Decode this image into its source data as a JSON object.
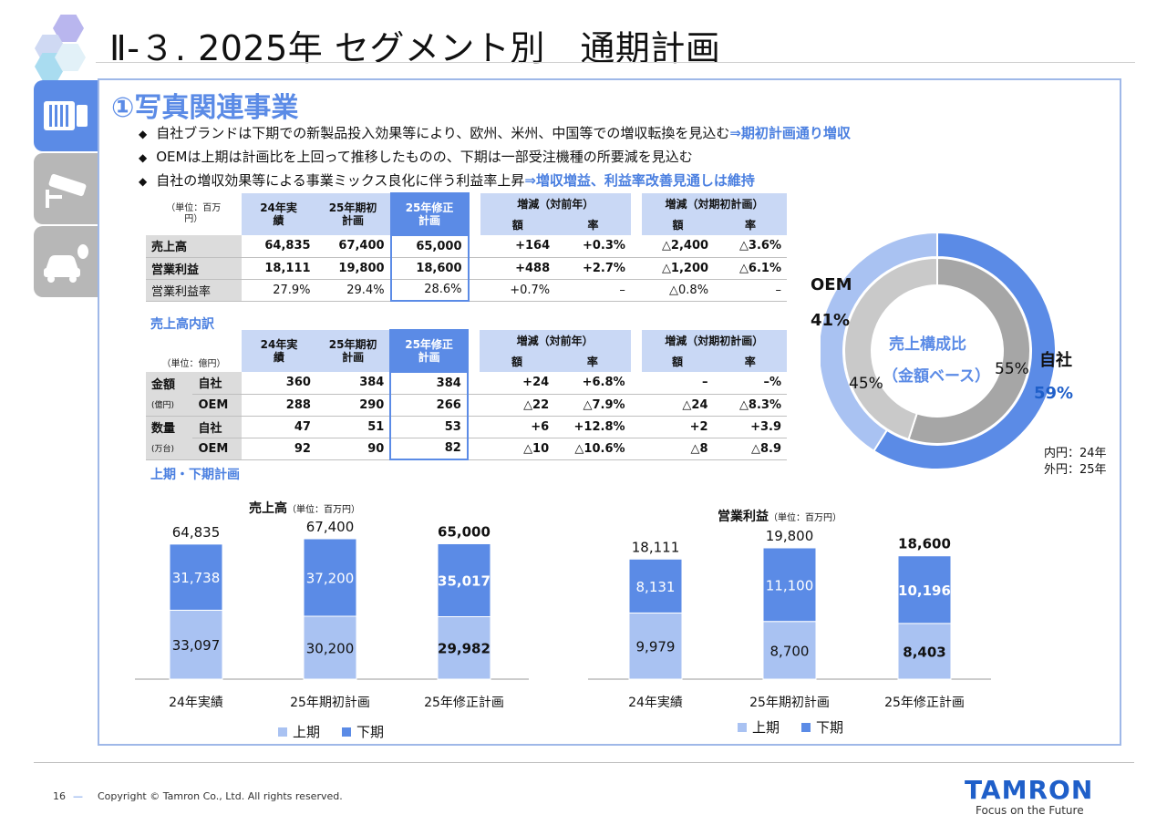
{
  "header": {
    "title": "Ⅱ-３. 2025年 セグメント別　通期計画"
  },
  "section": {
    "title": "①写真関連事業",
    "bullets": [
      {
        "text": "自社ブランドは下期での新製品投入効果等により、欧州、米州、中国等での増収転換を見込む",
        "highlight": "⇒期初計画通り増収"
      },
      {
        "text": "OEMは上期は計画比を上回って推移したものの、下期は一部受注機種の所要減を見込む",
        "highlight": ""
      },
      {
        "text": "自社の増収効果等による事業ミックス良化に伴う利益率上昇",
        "highlight": "⇒増収増益、利益率改善見通しは維持"
      }
    ],
    "bullet_marker": "◆"
  },
  "table1": {
    "unit": "（単位：百万円）",
    "headers": [
      "24年実績",
      "25年期初計画",
      "25年修正計画",
      "増減（対前年）",
      "増減（対期初計画）"
    ],
    "subheaders": [
      "額",
      "率",
      "額",
      "率"
    ],
    "rows": [
      {
        "label": "売上高",
        "v1": "64,835",
        "v2": "67,400",
        "v3": "65,000",
        "d1": "+164",
        "r1": "+0.3%",
        "d2": "△2,400",
        "r2": "△3.6%"
      },
      {
        "label": "営業利益",
        "v1": "18,111",
        "v2": "19,800",
        "v3": "18,600",
        "d1": "+488",
        "r1": "+2.7%",
        "d2": "△1,200",
        "r2": "△6.1%"
      },
      {
        "label": "営業利益率",
        "v1": "27.9%",
        "v2": "29.4%",
        "v3": "28.6%",
        "d1": "+0.7%",
        "r1": "–",
        "d2": "△0.8%",
        "r2": "–"
      }
    ]
  },
  "table2": {
    "title": "売上高内訳",
    "unit": "（単位：億円）",
    "groups": [
      {
        "label": "金額",
        "sub": "(億円)",
        "rows": [
          {
            "label": "自社",
            "v1": "360",
            "v2": "384",
            "v3": "384",
            "d1": "+24",
            "r1": "+6.8%",
            "d2": "–",
            "r2": "–%"
          },
          {
            "label": "OEM",
            "v1": "288",
            "v2": "290",
            "v3": "266",
            "d1": "△22",
            "r1": "△7.9%",
            "d2": "△24",
            "r2": "△8.3%"
          }
        ]
      },
      {
        "label": "数量",
        "sub": "(万台)",
        "rows": [
          {
            "label": "自社",
            "v1": "47",
            "v2": "51",
            "v3": "53",
            "d1": "+6",
            "r1": "+12.8%",
            "d2": "+2",
            "r2": "+3.9"
          },
          {
            "label": "OEM",
            "v1": "92",
            "v2": "90",
            "v3": "82",
            "d1": "△10",
            "r1": "△10.6%",
            "d2": "△8",
            "r2": "△8.9"
          }
        ]
      }
    ]
  },
  "donut": {
    "center_line1": "売上構成比",
    "center_line2": "（金額ベース）",
    "oem_label": "OEM",
    "oem_outer": "41%",
    "own_label": "自社",
    "own_outer": "59%",
    "inner_oem": "45%",
    "inner_own": "55%",
    "note_inner": "内円：24年",
    "note_outer": "外円：25年",
    "outer_values": [
      59,
      41
    ],
    "inner_values": [
      55,
      45
    ],
    "colors": {
      "own_outer": "#5b8be6",
      "oem_outer": "#a9c2f2",
      "own_inner": "#a6a6a6",
      "oem_inner": "#c9c9c9"
    }
  },
  "half_title": "上期・下期計画",
  "chart_data": [
    {
      "type": "bar",
      "title": "売上高",
      "unit": "（単位：百万円）",
      "categories": [
        "24年実績",
        "25年期初計画",
        "25年修正計画"
      ],
      "totals": [
        "64,835",
        "67,400",
        "65,000"
      ],
      "series": [
        {
          "name": "上期",
          "values": [
            33097,
            30200,
            29982
          ],
          "labels": [
            "33,097",
            "30,200",
            "29,982"
          ]
        },
        {
          "name": "下期",
          "values": [
            31738,
            37200,
            35017
          ],
          "labels": [
            "31,738",
            "37,200",
            "35,017"
          ]
        }
      ],
      "ylim": [
        0,
        67400
      ]
    },
    {
      "type": "bar",
      "title": "営業利益",
      "unit": "（単位：百万円）",
      "categories": [
        "24年実績",
        "25年期初計画",
        "25年修正計画"
      ],
      "totals": [
        "18,111",
        "19,800",
        "18,600"
      ],
      "series": [
        {
          "name": "上期",
          "values": [
            9979,
            8700,
            8403
          ],
          "labels": [
            "9,979",
            "8,700",
            "8,403"
          ]
        },
        {
          "name": "下期",
          "values": [
            8131,
            11100,
            10196
          ],
          "labels": [
            "8,131",
            "11,100",
            "10,196"
          ]
        }
      ],
      "ylim": [
        0,
        19800
      ]
    }
  ],
  "legend": {
    "first_half": "上期",
    "second_half": "下期",
    "colors": {
      "first_half": "#a9c2f2",
      "second_half": "#5b8be6"
    }
  },
  "footer": {
    "page": "16",
    "dash": "—",
    "copyright": "Copyright © Tamron Co., Ltd. All rights reserved.",
    "brand": "TAMRON",
    "tagline": "Focus on the Future"
  },
  "icons": [
    "camera-lens-icon",
    "surveillance-camera-icon",
    "car-camera-icon"
  ]
}
